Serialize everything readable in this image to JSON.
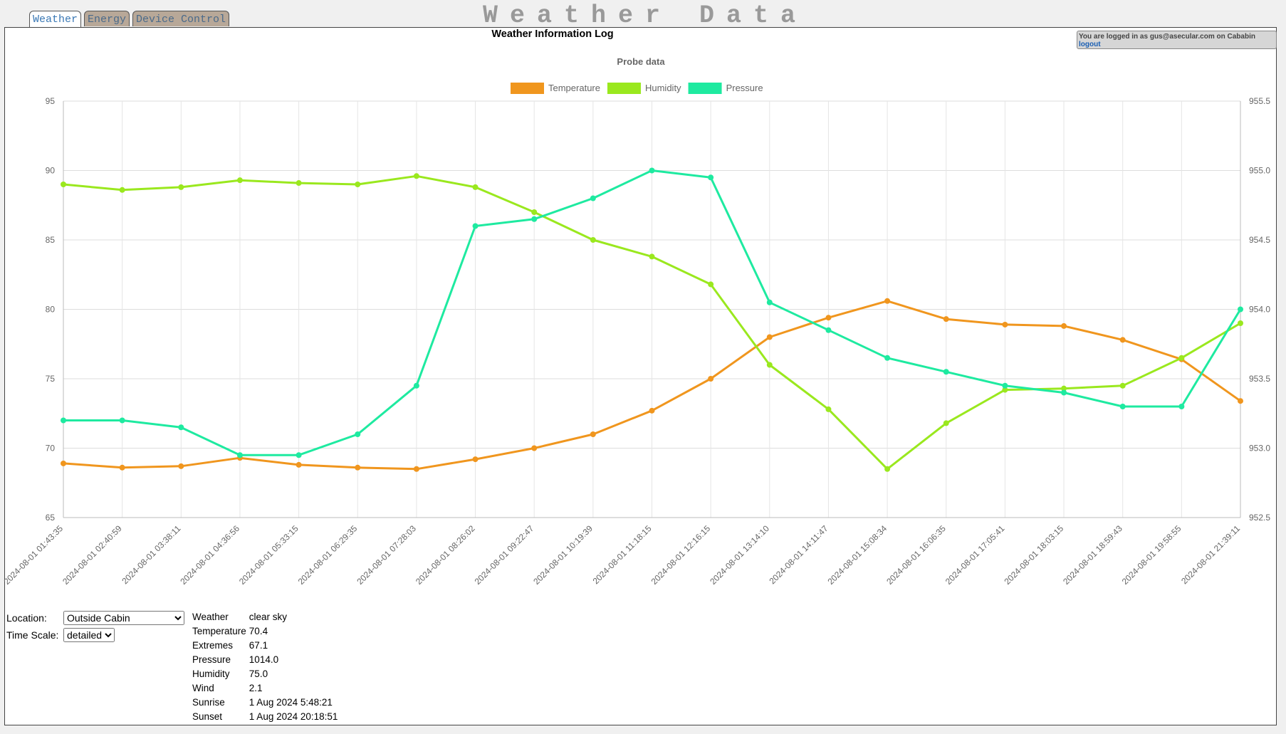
{
  "tabs": [
    {
      "label": "Weather",
      "active": true
    },
    {
      "label": "Energy",
      "active": false
    },
    {
      "label": "Device Control",
      "active": false
    }
  ],
  "page_title": "Weather Data",
  "login": {
    "text": "You are logged in as gus@asecular.com on Cababin",
    "logout": "logout"
  },
  "chart_heading": "Weather Information Log",
  "chart_data": {
    "type": "line",
    "title": "Probe data",
    "x": [
      "2024-08-01 01:43:35",
      "2024-08-01 02:40:59",
      "2024-08-01 03:38:11",
      "2024-08-01 04:36:56",
      "2024-08-01 05:33:15",
      "2024-08-01 06:29:35",
      "2024-08-01 07:28:03",
      "2024-08-01 08:26:02",
      "2024-08-01 09:22:47",
      "2024-08-01 10:19:39",
      "2024-08-01 11:18:15",
      "2024-08-01 12:16:15",
      "2024-08-01 13:14:10",
      "2024-08-01 14:11:47",
      "2024-08-01 15:08:34",
      "2024-08-01 16:06:35",
      "2024-08-01 17:05:41",
      "2024-08-01 18:03:15",
      "2024-08-01 18:59:43",
      "2024-08-01 19:58:55",
      "2024-08-01 21:39:11"
    ],
    "y_left": {
      "min": 65,
      "max": 95,
      "ticks": [
        "95",
        "90",
        "85",
        "80",
        "75",
        "70",
        "65"
      ]
    },
    "y_right": {
      "min": 952.5,
      "max": 955.5,
      "ticks": [
        "955.5",
        "955.0",
        "954.5",
        "954.0",
        "953.5",
        "953.0",
        "952.5"
      ]
    },
    "grid": true,
    "legend_position": "top",
    "series": [
      {
        "name": "Temperature",
        "axis": "left",
        "color": "#f0961e",
        "values": [
          68.9,
          68.6,
          68.7,
          69.3,
          68.8,
          68.6,
          68.5,
          69.2,
          70.0,
          71.0,
          72.7,
          75.0,
          78.0,
          79.4,
          80.6,
          79.3,
          78.9,
          78.8,
          77.8,
          76.4,
          73.4
        ]
      },
      {
        "name": "Humidity",
        "axis": "left",
        "color": "#9ae81e",
        "values": [
          89.0,
          88.6,
          88.8,
          89.3,
          89.1,
          89.0,
          89.6,
          88.8,
          87.0,
          85.0,
          83.8,
          81.8,
          76.0,
          72.8,
          68.5,
          71.8,
          74.2,
          74.3,
          74.5,
          76.5,
          79.0
        ]
      },
      {
        "name": "Pressure",
        "axis": "right",
        "color": "#1eeaa0",
        "values": [
          953.2,
          953.2,
          953.15,
          952.95,
          952.95,
          953.1,
          953.45,
          954.6,
          954.65,
          954.8,
          955.0,
          954.95,
          954.05,
          953.85,
          953.65,
          953.55,
          953.45,
          953.4,
          953.3,
          953.3,
          954.0
        ]
      }
    ]
  },
  "controls": {
    "location_label": "Location:",
    "location_value": "Outside Cabin",
    "timescale_label": "Time Scale:",
    "timescale_value": "detailed"
  },
  "info": [
    {
      "label": "Weather",
      "value": "clear sky"
    },
    {
      "label": "Temperature",
      "value": "70.4"
    },
    {
      "label": "Extremes",
      "value": "67.1"
    },
    {
      "label": "Pressure",
      "value": "1014.0"
    },
    {
      "label": "Humidity",
      "value": "75.0"
    },
    {
      "label": "Wind",
      "value": "2.1"
    },
    {
      "label": "Sunrise",
      "value": "1 Aug 2024 5:48:21"
    },
    {
      "label": "Sunset",
      "value": "1 Aug 2024 20:18:51"
    }
  ]
}
